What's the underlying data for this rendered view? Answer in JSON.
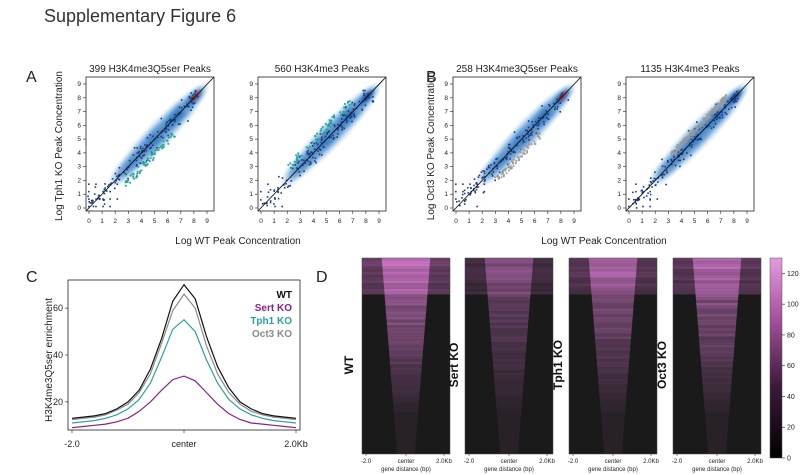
{
  "figure": {
    "title": "Supplementary Figure 6",
    "panel_letters": [
      "A",
      "B",
      "C",
      "D"
    ]
  },
  "colors": {
    "wt": "#111111",
    "sert_ko": "#8a1f8a",
    "tph1_ko": "#2aa39a",
    "oct3_ko": "#8a8a8a",
    "density_blue": "#2b6fb8",
    "density_core": "#c0282a",
    "heatmap_bg": "#1a1a1a",
    "heatmap_hot": "#d67bd0"
  },
  "chart_data": [
    {
      "id": "A1",
      "type": "scatter",
      "title": "399 H3K4me3Q5ser Peaks",
      "xlabel": "Log WT Peak Concentration",
      "ylabel": "Log Tph1 KO Peak Concentration",
      "xlim": [
        0,
        9
      ],
      "ylim": [
        0,
        9
      ],
      "xticks": [
        0,
        1,
        2,
        3,
        4,
        5,
        6,
        7,
        8,
        9
      ],
      "yticks": [
        0,
        1,
        2,
        3,
        4,
        5,
        6,
        7,
        8,
        9
      ],
      "highlight_color": "#2aa39a",
      "density_core": "#c0282a",
      "reference": "diagonal"
    },
    {
      "id": "A2",
      "type": "scatter",
      "title": "560 H3K4me3 Peaks",
      "xlabel": "Log WT Peak Concentration",
      "ylabel": "Log Tph1 KO Peak Concentration",
      "xlim": [
        0,
        9
      ],
      "ylim": [
        0,
        9
      ],
      "xticks": [
        0,
        1,
        2,
        3,
        4,
        5,
        6,
        7,
        8,
        9
      ],
      "yticks": [
        0,
        1,
        2,
        3,
        4,
        5,
        6,
        7,
        8,
        9
      ],
      "highlight_color": "#2aa39a",
      "density_core": "#1f4f9a",
      "reference": "diagonal"
    },
    {
      "id": "B1",
      "type": "scatter",
      "title": "258 H3K4me3Q5ser Peaks",
      "xlabel": "Log WT Peak Concentration",
      "ylabel": "Log Oct3 KO Peak Concentration",
      "xlim": [
        0,
        9
      ],
      "ylim": [
        0,
        9
      ],
      "xticks": [
        0,
        1,
        2,
        3,
        4,
        5,
        6,
        7,
        8,
        9
      ],
      "yticks": [
        0,
        1,
        2,
        3,
        4,
        5,
        6,
        7,
        8,
        9
      ],
      "highlight_color": "#9a9a9a",
      "density_core": "#c0282a",
      "reference": "diagonal"
    },
    {
      "id": "B2",
      "type": "scatter",
      "title": "1135 H3K4me3 Peaks",
      "xlabel": "Log WT Peak Concentration",
      "ylabel": "Log Oct3 KO Peak Concentration",
      "xlim": [
        0,
        9
      ],
      "ylim": [
        0,
        9
      ],
      "xticks": [
        0,
        1,
        2,
        3,
        4,
        5,
        6,
        7,
        8,
        9
      ],
      "yticks": [
        0,
        1,
        2,
        3,
        4,
        5,
        6,
        7,
        8,
        9
      ],
      "highlight_color": "#9a9a9a",
      "density_core": "#1f4f9a",
      "reference": "diagonal"
    },
    {
      "id": "C",
      "type": "line",
      "ylabel": "H3K4me3Q5ser enrichment",
      "x_tick_labels": [
        "-2.0",
        "center",
        "2.0Kb"
      ],
      "x": [
        -2.0,
        -1.8,
        -1.6,
        -1.4,
        -1.2,
        -1.0,
        -0.8,
        -0.6,
        -0.4,
        -0.2,
        0.0,
        0.2,
        0.4,
        0.6,
        0.8,
        1.0,
        1.2,
        1.4,
        1.6,
        1.8,
        2.0
      ],
      "ylim": [
        8,
        72
      ],
      "yticks": [
        20,
        40,
        60
      ],
      "series": [
        {
          "name": "WT",
          "color": "#111111",
          "values": [
            13,
            13.5,
            14,
            15,
            17,
            20,
            25,
            34,
            47,
            63,
            70,
            64,
            48,
            35,
            26,
            20,
            17,
            15,
            14,
            13.5,
            13
          ]
        },
        {
          "name": "Sert KO",
          "color": "#8a1f8a",
          "values": [
            9,
            9.5,
            10,
            10.5,
            11.5,
            13,
            16,
            20,
            25,
            29.5,
            31,
            29,
            24,
            19,
            15,
            12.5,
            11,
            10.5,
            10,
            9.5,
            9
          ]
        },
        {
          "name": "Tph1 KO",
          "color": "#2aa39a",
          "values": [
            11,
            11.5,
            12,
            13,
            14.5,
            17,
            21,
            28,
            39,
            51,
            55,
            50,
            38,
            28,
            21,
            17,
            14.5,
            13,
            12,
            11.5,
            11
          ]
        },
        {
          "name": "Oct3 KO",
          "color": "#8a8a8a",
          "values": [
            12.5,
            13,
            13.5,
            14.5,
            16.5,
            19,
            24,
            32,
            45,
            59,
            66,
            60,
            44,
            32,
            24,
            19,
            16,
            14.5,
            13.5,
            13,
            12.5
          ]
        }
      ]
    },
    {
      "id": "D",
      "type": "heatmap",
      "panels": [
        {
          "label": "WT",
          "intensity": 1.0
        },
        {
          "label": "Sert KO",
          "intensity": 0.55
        },
        {
          "label": "Tph1 KO",
          "intensity": 0.8
        },
        {
          "label": "Oct3 KO",
          "intensity": 0.9
        }
      ],
      "x_tick_labels": [
        "-2.0",
        "center",
        "2.0Kb"
      ],
      "xlabel": "gene distance (bp)",
      "colorbar": {
        "min": 0,
        "max": 130,
        "ticks": [
          0,
          20,
          40,
          60,
          80,
          100,
          120
        ]
      }
    }
  ]
}
